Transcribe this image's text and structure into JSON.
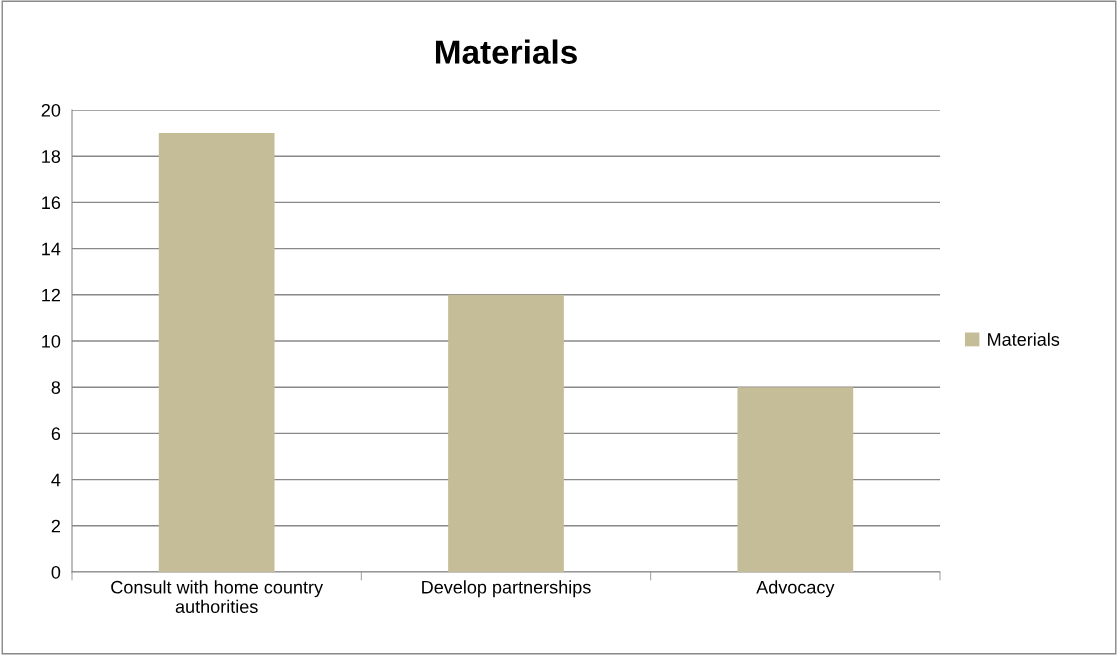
{
  "chart_data": {
    "type": "bar",
    "title": "Materials",
    "categories": [
      "Consult with home country authorities",
      "Develop partnerships",
      "Advocacy"
    ],
    "series": [
      {
        "name": "Materials",
        "color": "#c4bd97",
        "values": [
          19,
          12,
          8
        ]
      }
    ],
    "ylim": [
      0,
      20
    ],
    "yticks": [
      0,
      2,
      4,
      6,
      8,
      10,
      12,
      14,
      16,
      18,
      20
    ],
    "grid": "y",
    "legend": "right"
  }
}
